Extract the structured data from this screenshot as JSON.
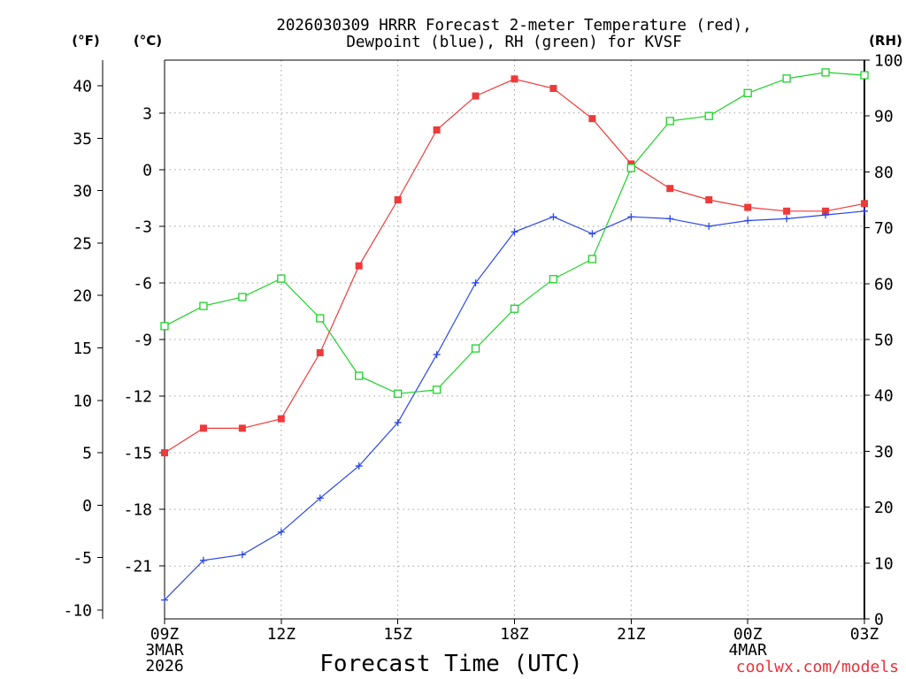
{
  "chart_data": {
    "type": "line",
    "title": [
      "2026030309 HRRR Forecast 2-meter Temperature (red),",
      "Dewpoint (blue), RH (green) for KVSF"
    ],
    "xlabel": "Forecast Time (UTC)",
    "x": [
      "09Z",
      "10Z",
      "11Z",
      "12Z",
      "13Z",
      "14Z",
      "15Z",
      "16Z",
      "17Z",
      "18Z",
      "19Z",
      "20Z",
      "21Z",
      "22Z",
      "23Z",
      "00Z",
      "01Z",
      "02Z",
      "03Z"
    ],
    "x_ticks": [
      {
        "label": "09Z",
        "date": [
          "3MAR",
          "2026"
        ]
      },
      {
        "label": "12Z"
      },
      {
        "label": "15Z"
      },
      {
        "label": "18Z"
      },
      {
        "label": "21Z"
      },
      {
        "label": "00Z",
        "date": [
          "4MAR"
        ]
      },
      {
        "label": "03Z"
      }
    ],
    "y_left": {
      "label": "(°C)",
      "lim": [
        -23.8,
        5.8
      ],
      "ticks": [
        3,
        0,
        -3,
        -6,
        -9,
        -12,
        -15,
        -18,
        -21
      ]
    },
    "y_left_outer": {
      "label": "(°F)",
      "lim": [
        -10.84,
        42.44
      ],
      "ticks": [
        40,
        35,
        30,
        25,
        20,
        15,
        10,
        5,
        0,
        -5,
        -10
      ]
    },
    "y_right": {
      "label": "(RH)",
      "lim": [
        0,
        100
      ],
      "ticks": [
        0,
        10,
        20,
        30,
        40,
        50,
        60,
        70,
        80,
        90,
        100
      ]
    },
    "grid": true,
    "series": [
      {
        "color": "#ee3a3a",
        "marker": "filled-square",
        "axis": "left",
        "values": [
          -15.0,
          -13.7,
          -13.7,
          -13.2,
          -9.7,
          -5.1,
          -1.6,
          2.1,
          3.9,
          4.8,
          4.3,
          2.7,
          0.3,
          -1.0,
          -1.6,
          -2.0,
          -2.2,
          -2.2,
          -1.8
        ]
      },
      {
        "color": "#2b46e6",
        "marker": "plus",
        "axis": "left",
        "values": [
          -22.8,
          -20.7,
          -20.4,
          -19.2,
          -17.4,
          -15.7,
          -13.4,
          -9.8,
          -6.0,
          -3.3,
          -2.5,
          -3.4,
          -2.5,
          -2.6,
          -3.0,
          -2.7,
          -2.6,
          -2.4,
          -2.2
        ]
      },
      {
        "color": "#1fd12a",
        "marker": "open-square",
        "axis": "right",
        "values": [
          52.4,
          56.0,
          57.6,
          60.9,
          53.8,
          43.5,
          40.3,
          41.0,
          48.4,
          55.5,
          60.8,
          64.4,
          80.7,
          89.1,
          90.0,
          94.1,
          96.7,
          97.8,
          97.3
        ]
      }
    ]
  },
  "watermark": {
    "text": "coolwx.com/models",
    "color": "#e8323a"
  }
}
